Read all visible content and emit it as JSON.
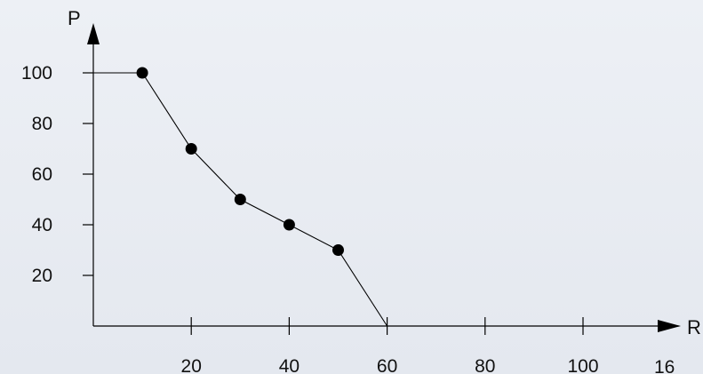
{
  "chart_data": {
    "type": "line",
    "title": "",
    "xlabel": "R",
    "ylabel": "P",
    "xlim": [
      0,
      120
    ],
    "ylim": [
      0,
      110
    ],
    "x_ticks": [
      20,
      40,
      60,
      80,
      100
    ],
    "x_tick_labels": [
      "20",
      "40",
      "60",
      "80",
      "100"
    ],
    "y_ticks": [
      20,
      40,
      60,
      80,
      100
    ],
    "y_tick_labels": [
      "20",
      "40",
      "60",
      "80",
      "100"
    ],
    "grid": false,
    "series": [
      {
        "line": [
          [
            0,
            100
          ],
          [
            10,
            100
          ],
          [
            20,
            70
          ],
          [
            30,
            50
          ],
          [
            40,
            40
          ],
          [
            50,
            30
          ],
          [
            60,
            0
          ]
        ],
        "points": [
          [
            10,
            100
          ],
          [
            20,
            70
          ],
          [
            30,
            50
          ],
          [
            40,
            40
          ],
          [
            50,
            30
          ]
        ]
      }
    ]
  },
  "page_number": "16"
}
